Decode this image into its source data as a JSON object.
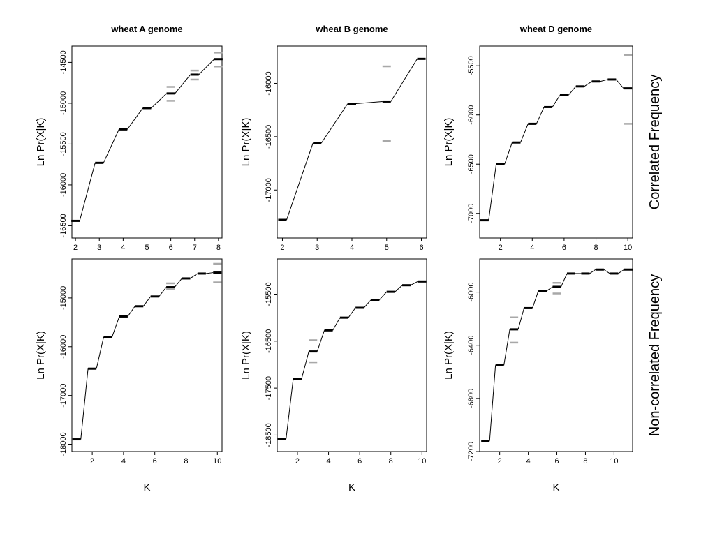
{
  "column_titles": [
    "wheat A genome",
    "wheat B genome",
    "wheat D genome"
  ],
  "row_labels": [
    "Correlated Frequency",
    "Non-correlated Frequency"
  ],
  "chart_data": [
    {
      "type": "line",
      "row": 0,
      "col": 0,
      "title": "wheat A genome",
      "xlabel": "",
      "ylabel": "Ln Pr(X|K)",
      "xlim": [
        1.85,
        8.15
      ],
      "ylim": [
        -16650,
        -14300
      ],
      "xticks": [
        2,
        3,
        4,
        5,
        6,
        7,
        8
      ],
      "xtick_labels": [
        "2",
        "3",
        "4",
        "5",
        "6",
        "7",
        "8"
      ],
      "yticks": [
        -16500,
        -16000,
        -15500,
        -15000,
        -14500
      ],
      "ytick_labels": [
        "-16500",
        "-16000",
        "-15500",
        "-15000",
        "-14500"
      ],
      "x": [
        2,
        3,
        4,
        5,
        6,
        7,
        8
      ],
      "mean": [
        -16440,
        -15730,
        -15320,
        -15060,
        -14880,
        -14650,
        -14460
      ],
      "ranges": [
        null,
        null,
        null,
        null,
        [
          -14970,
          -14800
        ],
        [
          -14710,
          -14600
        ],
        [
          -14550,
          -14380
        ]
      ]
    },
    {
      "type": "line",
      "row": 0,
      "col": 1,
      "title": "wheat B genome",
      "xlabel": "",
      "ylabel": "Ln Pr(X|K)",
      "xlim": [
        1.85,
        6.15
      ],
      "ylim": [
        -17450,
        -15650
      ],
      "xticks": [
        2,
        3,
        4,
        5,
        6
      ],
      "xtick_labels": [
        "2",
        "3",
        "4",
        "5",
        "6"
      ],
      "yticks": [
        -17000,
        -16500,
        -16000
      ],
      "ytick_labels": [
        "-17000",
        "-16500",
        "-16000"
      ],
      "x": [
        2,
        3,
        4,
        5,
        6
      ],
      "mean": [
        -17280,
        -16560,
        -16190,
        -16170,
        -15770
      ],
      "ranges": [
        null,
        null,
        null,
        [
          -16540,
          -15840
        ],
        null
      ]
    },
    {
      "type": "line",
      "row": 0,
      "col": 2,
      "title": "wheat D genome",
      "xlabel": "",
      "ylabel": "Ln Pr(X|K)",
      "xlim": [
        0.7,
        10.3
      ],
      "ylim": [
        -7250,
        -5300
      ],
      "xticks": [
        2,
        4,
        6,
        8,
        10
      ],
      "xtick_labels": [
        "2",
        "4",
        "6",
        "8",
        "10"
      ],
      "yticks": [
        -7000,
        -6500,
        -6000,
        -5500
      ],
      "ytick_labels": [
        "-7000",
        "-6500",
        "-6000",
        "-5500"
      ],
      "x": [
        1,
        2,
        3,
        4,
        5,
        6,
        7,
        8,
        9,
        10
      ],
      "mean": [
        -7070,
        -6500,
        -6280,
        -6090,
        -5920,
        -5800,
        -5710,
        -5660,
        -5640,
        -5730
      ],
      "ranges": [
        null,
        null,
        null,
        null,
        null,
        null,
        null,
        null,
        null,
        [
          -6090,
          -5390
        ]
      ]
    },
    {
      "type": "line",
      "row": 1,
      "col": 0,
      "title": "",
      "xlabel": "K",
      "ylabel": "Ln Pr(X|K)",
      "xlim": [
        0.7,
        10.3
      ],
      "ylim": [
        -18150,
        -14200
      ],
      "xticks": [
        2,
        4,
        6,
        8,
        10
      ],
      "xtick_labels": [
        "2",
        "4",
        "6",
        "8",
        "10"
      ],
      "yticks": [
        -18000,
        -17000,
        -16000,
        -15000
      ],
      "ytick_labels": [
        "-18000",
        "-17000",
        "-16000",
        "-15000"
      ],
      "x": [
        1,
        2,
        3,
        4,
        5,
        6,
        7,
        8,
        9,
        10
      ],
      "mean": [
        -17900,
        -16450,
        -15800,
        -15380,
        -15170,
        -14970,
        -14780,
        -14600,
        -14500,
        -14480
      ],
      "ranges": [
        null,
        null,
        null,
        null,
        null,
        null,
        [
          -14820,
          -14700
        ],
        null,
        null,
        [
          -14680,
          -14300
        ]
      ]
    },
    {
      "type": "line",
      "row": 1,
      "col": 1,
      "title": "",
      "xlabel": "K",
      "ylabel": "Ln Pr(X|K)",
      "xlim": [
        0.7,
        10.3
      ],
      "ylim": [
        -18850,
        -14750
      ],
      "xticks": [
        2,
        4,
        6,
        8,
        10
      ],
      "xtick_labels": [
        "2",
        "4",
        "6",
        "8",
        "10"
      ],
      "yticks": [
        -18500,
        -17500,
        -16500,
        -15500
      ],
      "ytick_labels": [
        "-18500",
        "-17500",
        "-16500",
        "-15500"
      ],
      "x": [
        1,
        2,
        3,
        4,
        5,
        6,
        7,
        8,
        9,
        10
      ],
      "mean": [
        -18580,
        -17300,
        -16720,
        -16270,
        -16000,
        -15790,
        -15620,
        -15450,
        -15310,
        -15230
      ],
      "ranges": [
        null,
        null,
        [
          -16950,
          -16480
        ],
        null,
        null,
        null,
        null,
        null,
        null,
        null
      ]
    },
    {
      "type": "line",
      "row": 1,
      "col": 2,
      "title": "",
      "xlabel": "K",
      "ylabel": "Ln Pr(X|K)",
      "xlim": [
        0.6,
        11.3
      ],
      "ylim": [
        -7200,
        -5750
      ],
      "xticks": [
        2,
        4,
        6,
        8,
        10
      ],
      "xtick_labels": [
        "2",
        "4",
        "6",
        "8",
        "10"
      ],
      "yticks": [
        -7200,
        -6800,
        -6400,
        -6000
      ],
      "ytick_labels": [
        "-7200",
        "-6800",
        "-6400",
        "-6000"
      ],
      "x": [
        1,
        2,
        3,
        4,
        5,
        6,
        7,
        8,
        9,
        10,
        11
      ],
      "mean": [
        -7120,
        -6550,
        -6280,
        -6120,
        -5990,
        -5960,
        -5860,
        -5860,
        -5830,
        -5860,
        -5830
      ],
      "ranges": [
        null,
        null,
        [
          -6380,
          -6190
        ],
        null,
        null,
        [
          -6010,
          -5930
        ],
        null,
        null,
        null,
        null,
        null
      ]
    }
  ]
}
